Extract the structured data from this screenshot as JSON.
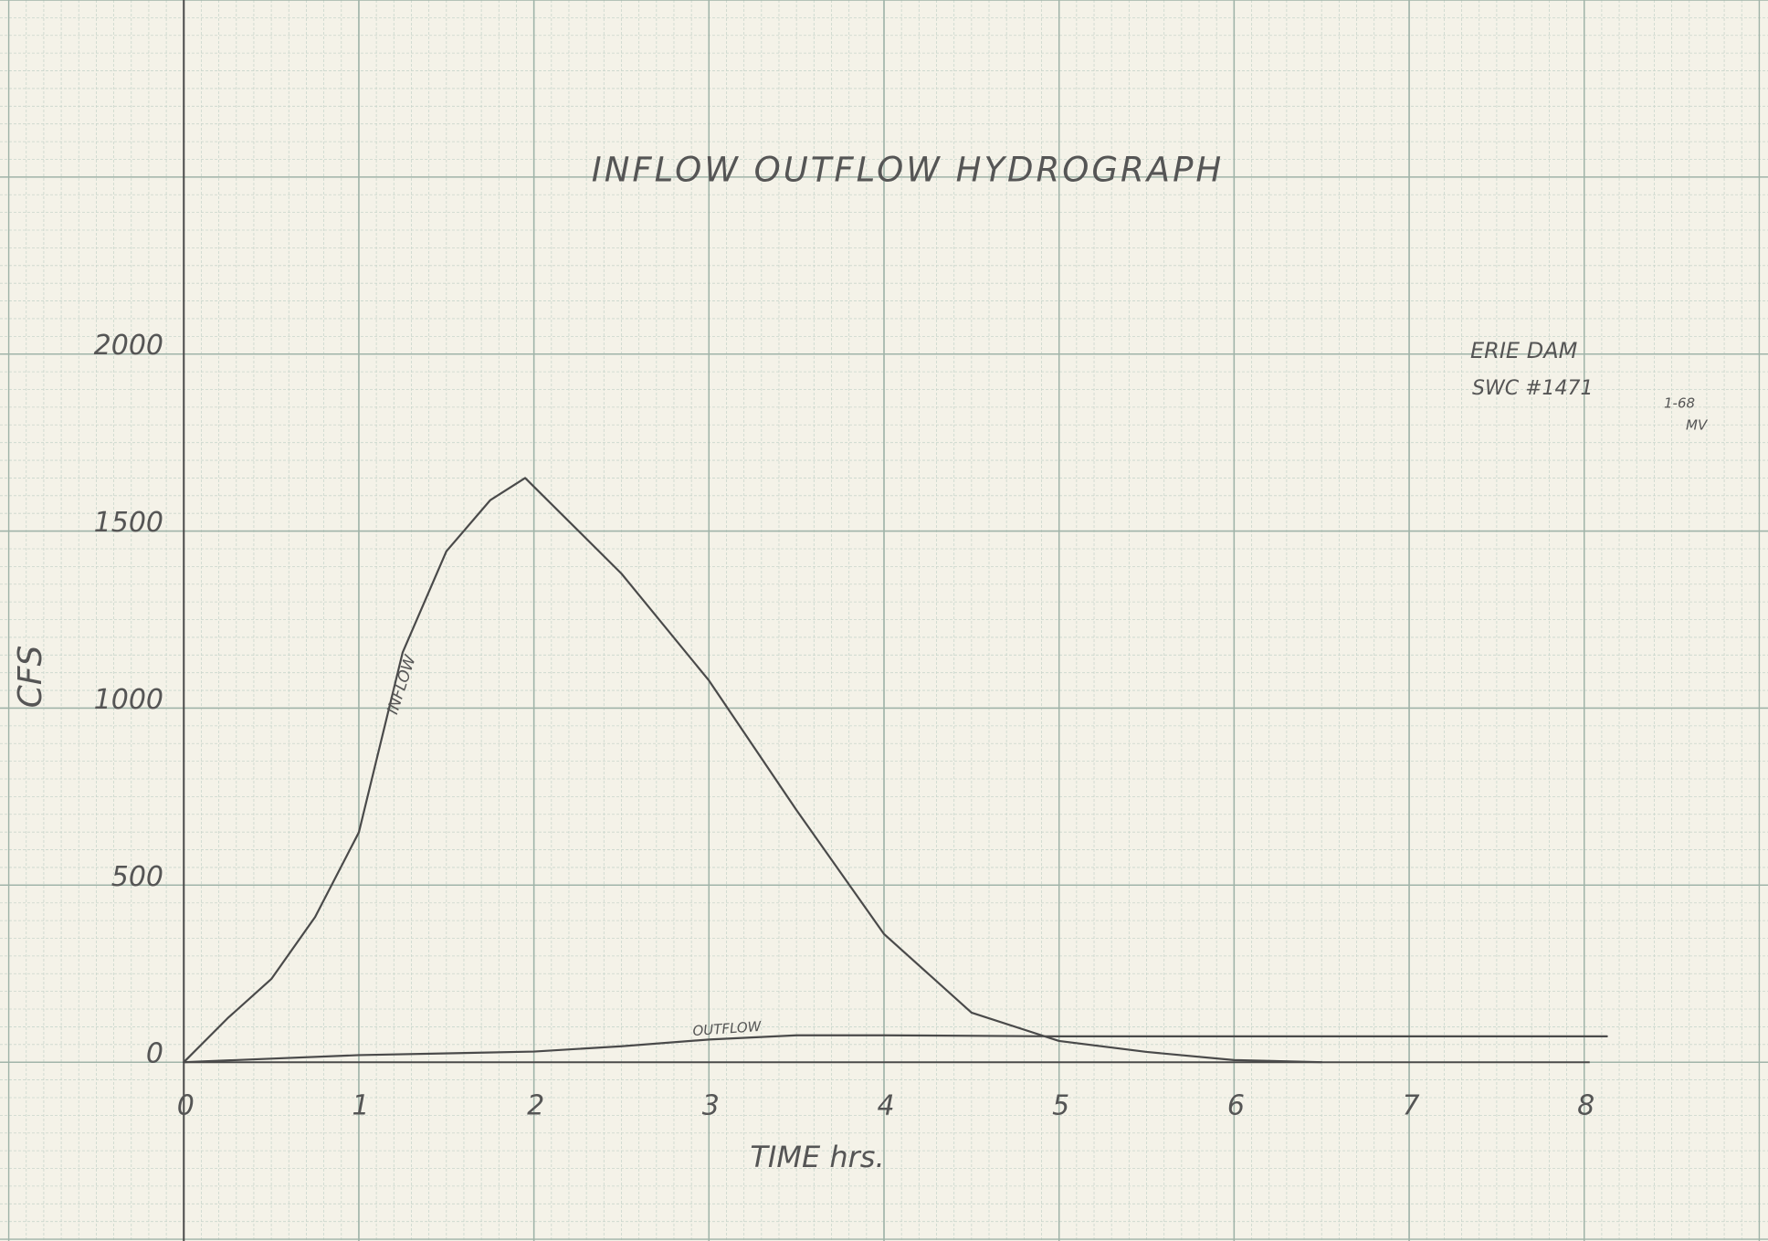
{
  "chart_data": {
    "type": "line",
    "title": "INFLOW OUTFLOW HYDROGRAPH",
    "x_label": "TIME hrs.",
    "y_label": "CFS",
    "xlim": [
      -1.05,
      9.05
    ],
    "ylim": [
      -505,
      3000
    ],
    "xticks": [
      0,
      1,
      2,
      3,
      4,
      5,
      6,
      7,
      8
    ],
    "yticks": [
      0,
      500,
      1000,
      1500,
      2000
    ],
    "grid": true,
    "series": [
      {
        "name": "INFLOW",
        "color": "#4a4a4a",
        "x": [
          0,
          0.25,
          0.5,
          0.75,
          1,
          1.25,
          1.5,
          1.75,
          1.95,
          2.5,
          3,
          3.5,
          4,
          4.5,
          5,
          5.5,
          6,
          6.5
        ],
        "values": [
          0,
          124,
          235,
          410,
          649,
          1157,
          1443,
          1587,
          1650,
          1380,
          1078,
          712,
          362,
          140,
          60,
          29,
          6,
          0
        ]
      },
      {
        "name": "OUTFLOW",
        "color": "#4a4a4a",
        "x": [
          0,
          1,
          2,
          2.5,
          3,
          3.5,
          4,
          5,
          6,
          7,
          8.13
        ],
        "values": [
          0,
          20,
          30,
          45,
          64,
          76,
          76,
          73,
          73,
          73,
          73
        ]
      }
    ],
    "annotations": [
      "ERIE DAM",
      "SWC #1471",
      "1-68",
      "MV"
    ]
  }
}
